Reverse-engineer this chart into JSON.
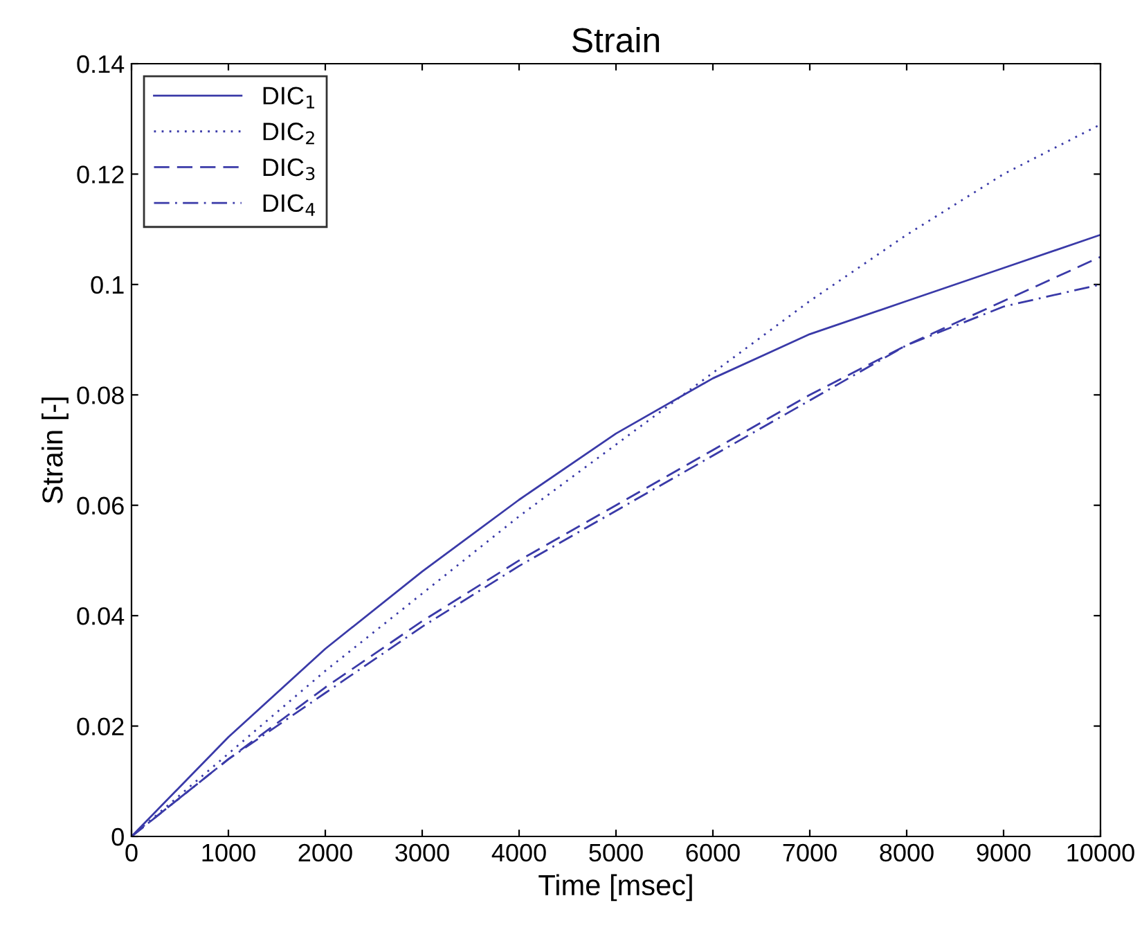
{
  "chart_data": {
    "type": "line",
    "title": "Strain",
    "xlabel": "Time [msec]",
    "ylabel": "Strain [-]",
    "x": [
      0,
      500,
      1000,
      2000,
      3000,
      4000,
      5000,
      6000,
      7000,
      8000,
      9000,
      10000
    ],
    "series": [
      {
        "name": "DIC$_{1}$",
        "color": "#3a3aa8",
        "line_style": "solid",
        "values": [
          0,
          0.009,
          0.018,
          0.034,
          0.048,
          0.061,
          0.073,
          0.083,
          0.091,
          0.097,
          0.103,
          0.109
        ]
      },
      {
        "name": "DIC$_{2}$",
        "color": "#3a3aa8",
        "line_style": "dotted",
        "values": [
          0,
          0.0075,
          0.015,
          0.03,
          0.044,
          0.058,
          0.071,
          0.084,
          0.097,
          0.109,
          0.12,
          0.129
        ]
      },
      {
        "name": "DIC$_{3}$",
        "color": "#3a3aa8",
        "line_style": "dashed",
        "values": [
          0,
          0.007,
          0.014,
          0.027,
          0.039,
          0.05,
          0.06,
          0.07,
          0.08,
          0.089,
          0.097,
          0.105
        ]
      },
      {
        "name": "DIC$_{4}$",
        "color": "#3a3aa8",
        "line_style": "dashdot",
        "values": [
          0,
          0.007,
          0.014,
          0.026,
          0.038,
          0.049,
          0.059,
          0.069,
          0.079,
          0.089,
          0.096,
          0.1
        ]
      }
    ],
    "xlim": [
      0,
      10000
    ],
    "ylim": [
      0,
      0.14
    ],
    "xticks": [
      0,
      1000,
      2000,
      3000,
      4000,
      5000,
      6000,
      7000,
      8000,
      9000,
      10000
    ],
    "yticks": [
      0,
      0.02,
      0.04,
      0.06,
      0.08,
      0.1,
      0.12,
      0.14
    ],
    "grid": false,
    "legend": "top left",
    "marker": "none"
  }
}
